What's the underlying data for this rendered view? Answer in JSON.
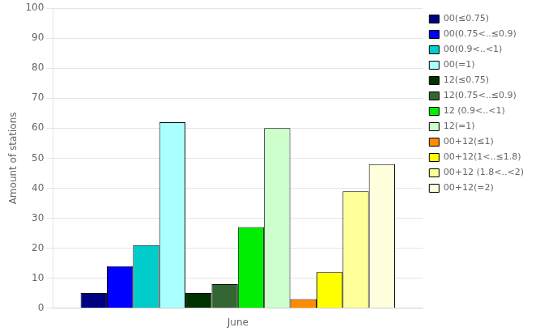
{
  "chart_data": {
    "type": "bar",
    "categories": [
      "June"
    ],
    "series": [
      {
        "name": "00(≤0.75)",
        "color": "#000080",
        "values": [
          5
        ]
      },
      {
        "name": "00(0.75<..≤0.9)",
        "color": "#0000FF",
        "values": [
          14
        ]
      },
      {
        "name": "00(0.9<..<1)",
        "color": "#00CCCC",
        "values": [
          21
        ]
      },
      {
        "name": "00(=1)",
        "color": "#AAFFFF",
        "values": [
          62
        ]
      },
      {
        "name": "12(≤0.75)",
        "color": "#003300",
        "values": [
          5
        ]
      },
      {
        "name": "12(0.75<..≤0.9)",
        "color": "#336633",
        "values": [
          8
        ]
      },
      {
        "name": "12 (0.9<..<1)",
        "color": "#00EE00",
        "values": [
          27
        ]
      },
      {
        "name": "12(=1)",
        "color": "#CCFFCC",
        "values": [
          60
        ]
      },
      {
        "name": "00+12(≤1)",
        "color": "#FF8C00",
        "values": [
          3
        ]
      },
      {
        "name": "00+12(1<..≤1.8)",
        "color": "#FFFF00",
        "values": [
          12
        ]
      },
      {
        "name": "00+12 (1.8<..<2)",
        "color": "#FFFF99",
        "values": [
          39
        ]
      },
      {
        "name": "00+12(=2)",
        "color": "#FFFFDD",
        "values": [
          48
        ]
      }
    ],
    "ylabel": "Amount of stations",
    "ylim": [
      0,
      100
    ],
    "yticks": [
      0,
      10,
      20,
      30,
      40,
      50,
      60,
      70,
      80,
      90,
      100
    ],
    "grid": true,
    "legend": "upper right"
  }
}
